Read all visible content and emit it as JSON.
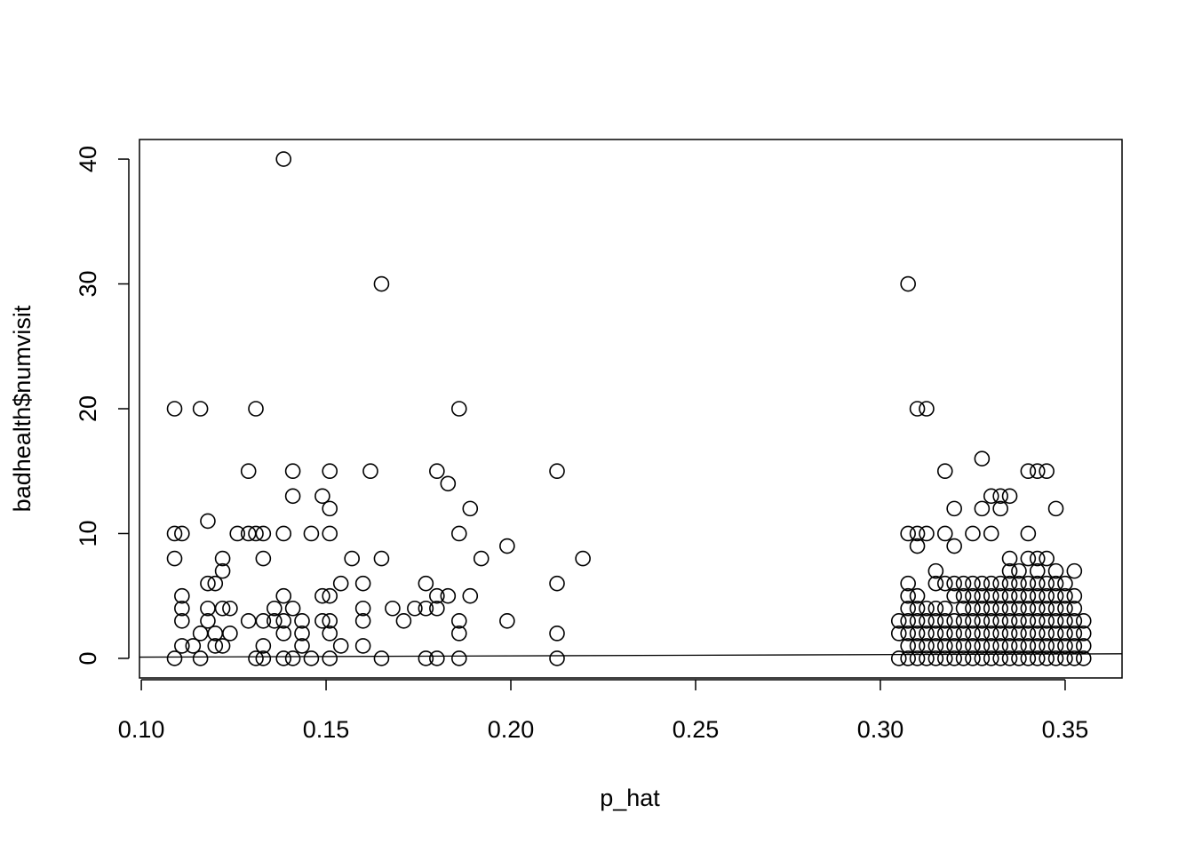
{
  "chart_data": {
    "type": "scatter",
    "x_label": "p_hat",
    "y_label": "badhealth$numvisit",
    "xlim": [
      0.0995,
      0.3654
    ],
    "ylim": [
      -1.57,
      41.57
    ],
    "xticks": [
      {
        "value": 0.1,
        "label": "0.10"
      },
      0.15,
      {
        "value": 0.2,
        "label": "0.20"
      },
      0.25,
      {
        "value": 0.3,
        "label": "0.30"
      },
      0.35
    ],
    "yticks": [
      0,
      10,
      20,
      30,
      40
    ],
    "color": "#000000",
    "reference_line": {
      "intercept": 0,
      "slope": 1
    },
    "x": [
      0.109,
      0.109,
      0.109,
      0.109,
      0.111,
      0.111,
      0.111,
      0.111,
      0.111,
      0.114,
      0.116,
      0.116,
      0.116,
      0.118,
      0.118,
      0.118,
      0.118,
      0.12,
      0.12,
      0.12,
      0.122,
      0.122,
      0.122,
      0.122,
      0.124,
      0.124,
      0.126,
      0.129,
      0.129,
      0.129,
      0.131,
      0.131,
      0.131,
      0.133,
      0.133,
      0.133,
      0.133,
      0.133,
      0.136,
      0.136,
      0.1385,
      0.1385,
      0.1385,
      0.1385,
      0.1385,
      0.1385,
      0.141,
      0.141,
      0.141,
      0.141,
      0.1435,
      0.1435,
      0.1435,
      0.146,
      0.146,
      0.149,
      0.149,
      0.149,
      0.151,
      0.151,
      0.151,
      0.151,
      0.151,
      0.151,
      0.151,
      0.154,
      0.154,
      0.157,
      0.16,
      0.16,
      0.16,
      0.16,
      0.162,
      0.165,
      0.165,
      0.165,
      0.168,
      0.171,
      0.174,
      0.177,
      0.177,
      0.177,
      0.18,
      0.18,
      0.18,
      0.18,
      0.183,
      0.183,
      0.186,
      0.186,
      0.186,
      0.186,
      0.186,
      0.189,
      0.189,
      0.192,
      0.199,
      0.199,
      0.2125,
      0.2125,
      0.2125,
      0.2125,
      0.2195,
      0.305,
      0.305,
      0.305,
      0.3075,
      0.3075,
      0.3075,
      0.3075,
      0.3075,
      0.3075,
      0.3075,
      0.3075,
      0.3075,
      0.31,
      0.31,
      0.31,
      0.31,
      0.31,
      0.31,
      0.31,
      0.31,
      0.31,
      0.3125,
      0.3125,
      0.3125,
      0.3125,
      0.3125,
      0.3125,
      0.3125,
      0.315,
      0.315,
      0.315,
      0.315,
      0.315,
      0.315,
      0.315,
      0.3175,
      0.3175,
      0.3175,
      0.3175,
      0.3175,
      0.3175,
      0.3175,
      0.3175,
      0.32,
      0.32,
      0.32,
      0.32,
      0.32,
      0.32,
      0.32,
      0.32,
      0.3225,
      0.3225,
      0.3225,
      0.3225,
      0.3225,
      0.3225,
      0.3225,
      0.325,
      0.325,
      0.325,
      0.325,
      0.325,
      0.325,
      0.325,
      0.325,
      0.3275,
      0.3275,
      0.3275,
      0.3275,
      0.3275,
      0.3275,
      0.3275,
      0.3275,
      0.3275,
      0.33,
      0.33,
      0.33,
      0.33,
      0.33,
      0.33,
      0.33,
      0.33,
      0.33,
      0.3325,
      0.3325,
      0.3325,
      0.3325,
      0.3325,
      0.3325,
      0.3325,
      0.3325,
      0.3325,
      0.335,
      0.335,
      0.335,
      0.335,
      0.335,
      0.335,
      0.335,
      0.335,
      0.335,
      0.335,
      0.3375,
      0.3375,
      0.3375,
      0.3375,
      0.3375,
      0.3375,
      0.3375,
      0.3375,
      0.34,
      0.34,
      0.34,
      0.34,
      0.34,
      0.34,
      0.34,
      0.34,
      0.34,
      0.34,
      0.3425,
      0.3425,
      0.3425,
      0.3425,
      0.3425,
      0.3425,
      0.3425,
      0.3425,
      0.3425,
      0.3425,
      0.345,
      0.345,
      0.345,
      0.345,
      0.345,
      0.345,
      0.345,
      0.345,
      0.345,
      0.3475,
      0.3475,
      0.3475,
      0.3475,
      0.3475,
      0.3475,
      0.3475,
      0.3475,
      0.3475,
      0.35,
      0.35,
      0.35,
      0.35,
      0.35,
      0.35,
      0.35,
      0.3525,
      0.3525,
      0.3525,
      0.3525,
      0.3525,
      0.3525,
      0.3525,
      0.355,
      0.355,
      0.355,
      0.355
    ],
    "values": [
      20,
      10,
      8,
      0,
      10,
      5,
      4,
      3,
      1,
      1,
      20,
      2,
      0,
      11,
      6,
      4,
      3,
      6,
      2,
      1,
      8,
      7,
      4,
      1,
      4,
      2,
      10,
      15,
      10,
      3,
      20,
      10,
      0,
      10,
      8,
      3,
      1,
      0,
      4,
      3,
      40,
      10,
      5,
      3,
      2,
      0,
      15,
      13,
      4,
      0,
      3,
      2,
      1,
      10,
      0,
      13,
      5,
      3,
      15,
      12,
      10,
      5,
      3,
      2,
      0,
      6,
      1,
      8,
      6,
      4,
      3,
      1,
      15,
      30,
      8,
      0,
      4,
      3,
      4,
      6,
      4,
      0,
      15,
      5,
      4,
      0,
      14,
      5,
      20,
      10,
      3,
      2,
      0,
      12,
      5,
      8,
      9,
      3,
      15,
      6,
      2,
      0,
      8,
      0,
      2,
      3,
      0,
      1,
      2,
      3,
      4,
      5,
      6,
      10,
      30,
      0,
      1,
      2,
      3,
      4,
      5,
      9,
      10,
      20,
      0,
      1,
      2,
      3,
      4,
      10,
      20,
      0,
      1,
      2,
      3,
      4,
      6,
      7,
      0,
      1,
      2,
      3,
      4,
      6,
      10,
      15,
      0,
      1,
      2,
      3,
      5,
      6,
      9,
      12,
      0,
      1,
      2,
      3,
      4,
      5,
      6,
      0,
      1,
      2,
      3,
      4,
      5,
      6,
      10,
      0,
      1,
      2,
      3,
      4,
      5,
      6,
      12,
      16,
      0,
      1,
      2,
      3,
      4,
      5,
      6,
      10,
      13,
      0,
      1,
      2,
      3,
      4,
      5,
      6,
      12,
      13,
      0,
      1,
      2,
      3,
      4,
      5,
      6,
      7,
      8,
      13,
      0,
      1,
      2,
      3,
      4,
      5,
      6,
      7,
      0,
      1,
      2,
      3,
      4,
      5,
      6,
      8,
      10,
      15,
      0,
      1,
      2,
      3,
      4,
      5,
      6,
      7,
      8,
      15,
      0,
      1,
      2,
      3,
      4,
      5,
      6,
      8,
      15,
      0,
      1,
      2,
      3,
      4,
      5,
      6,
      7,
      12,
      0,
      1,
      2,
      3,
      4,
      5,
      6,
      0,
      1,
      2,
      3,
      4,
      5,
      7,
      0,
      1,
      2,
      3
    ]
  }
}
